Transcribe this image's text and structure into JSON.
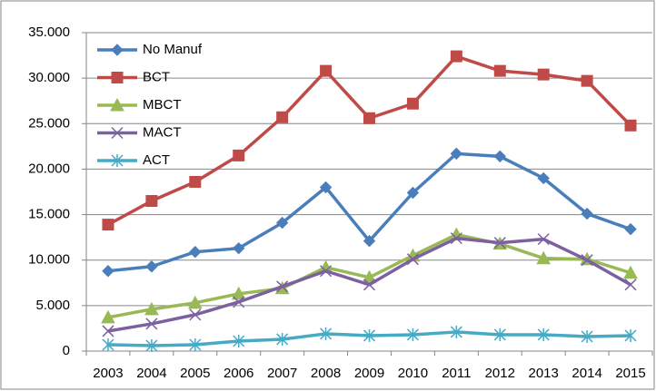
{
  "chart_data": {
    "type": "line",
    "categories": [
      "2003",
      "2004",
      "2005",
      "2006",
      "2007",
      "2008",
      "2009",
      "2010",
      "2011",
      "2012",
      "2013",
      "2014",
      "2015"
    ],
    "ylim": [
      0,
      35000
    ],
    "yticks": [
      0,
      {
        "value": 5000,
        "label": "5.000"
      },
      {
        "value": 10000,
        "label": "10.000"
      },
      {
        "value": 15000,
        "label": "15.000"
      },
      {
        "value": 20000,
        "label": "20.000"
      },
      {
        "value": 25000,
        "label": "25.000"
      },
      {
        "value": 30000,
        "label": "30.000"
      },
      {
        "value": 35000,
        "label": "35.000"
      }
    ],
    "grid": true,
    "legend": "top-left",
    "series": [
      {
        "name": "No Manuf",
        "color": "#4a7ebb",
        "marker": "diamond",
        "values": [
          8800,
          9300,
          10900,
          11300,
          14100,
          18000,
          12100,
          17400,
          21700,
          21400,
          19000,
          15100,
          13400
        ]
      },
      {
        "name": "BCT",
        "color": "#be4b48",
        "marker": "square",
        "values": [
          13900,
          16500,
          18600,
          21500,
          25700,
          30800,
          25600,
          27200,
          32400,
          30800,
          30400,
          29700,
          24800
        ]
      },
      {
        "name": "MBCT",
        "color": "#98b954",
        "marker": "triangle",
        "values": [
          3700,
          4600,
          5300,
          6300,
          6900,
          9200,
          8100,
          10500,
          12800,
          11800,
          10200,
          10100,
          8600
        ]
      },
      {
        "name": "MACT",
        "color": "#7d60a0",
        "marker": "x",
        "values": [
          2200,
          3000,
          4000,
          5400,
          7100,
          8800,
          7300,
          10100,
          12400,
          11900,
          12300,
          10000,
          7300
        ]
      },
      {
        "name": "ACT",
        "color": "#46aac5",
        "marker": "star",
        "values": [
          700,
          600,
          700,
          1100,
          1300,
          1900,
          1700,
          1800,
          2100,
          1800,
          1800,
          1600,
          1700
        ]
      }
    ]
  }
}
